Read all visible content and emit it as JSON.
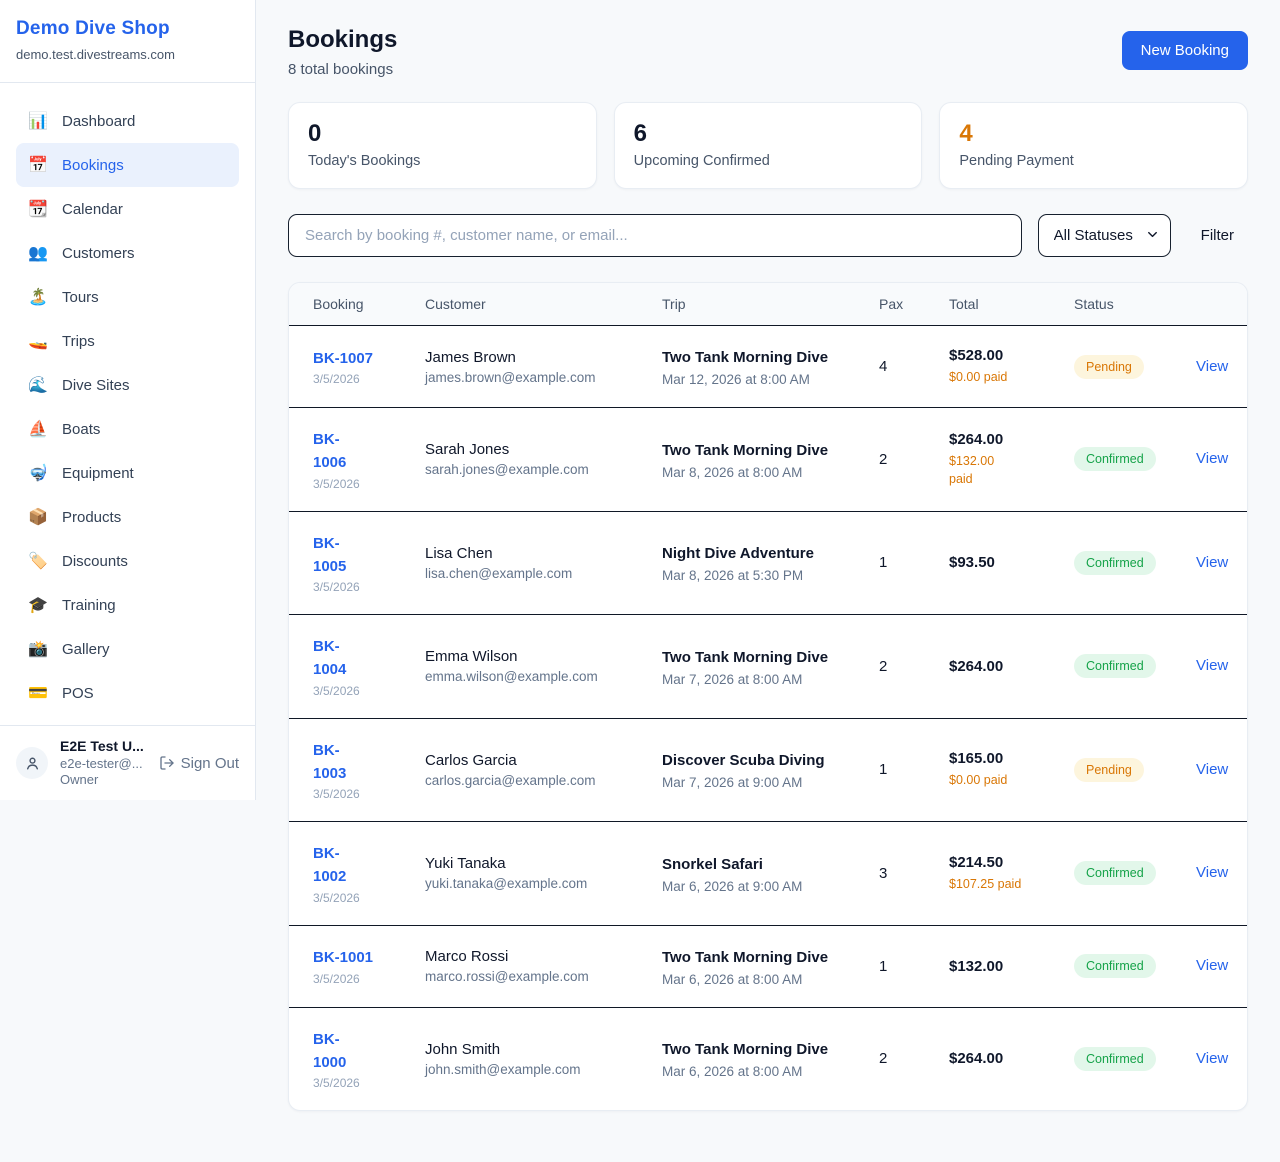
{
  "app": {
    "name": "Demo Dive Shop",
    "domain": "demo.test.divestreams.com"
  },
  "colors": {
    "accent_blue": "#2563eb",
    "pending_text": "#d97706",
    "pending_bg": "#fdf5dd",
    "confirmed_text": "#16a34a",
    "confirmed_bg": "#e2f7ea",
    "row_divider": "#101826"
  },
  "sidebar": {
    "items": [
      {
        "icon": "📊",
        "icon_name": "bar-chart-icon",
        "label": "Dashboard",
        "active": false
      },
      {
        "icon": "📅",
        "icon_name": "calendar-icon",
        "label": "Bookings",
        "active": true
      },
      {
        "icon": "📆",
        "icon_name": "tear-off-calendar-icon",
        "label": "Calendar",
        "active": false
      },
      {
        "icon": "👥",
        "icon_name": "people-icon",
        "label": "Customers",
        "active": false
      },
      {
        "icon": "🏝️",
        "icon_name": "island-icon",
        "label": "Tours",
        "active": false
      },
      {
        "icon": "🚤",
        "icon_name": "speedboat-icon",
        "label": "Trips",
        "active": false
      },
      {
        "icon": "🌊",
        "icon_name": "wave-icon",
        "label": "Dive Sites",
        "active": false
      },
      {
        "icon": "⛵",
        "icon_name": "sailboat-icon",
        "label": "Boats",
        "active": false
      },
      {
        "icon": "🤿",
        "icon_name": "diving-mask-icon",
        "label": "Equipment",
        "active": false
      },
      {
        "icon": "📦",
        "icon_name": "package-icon",
        "label": "Products",
        "active": false
      },
      {
        "icon": "🏷️",
        "icon_name": "tag-icon",
        "label": "Discounts",
        "active": false
      },
      {
        "icon": "🎓",
        "icon_name": "graduation-cap-icon",
        "label": "Training",
        "active": false
      },
      {
        "icon": "📸",
        "icon_name": "camera-icon",
        "label": "Gallery",
        "active": false
      },
      {
        "icon": "💳",
        "icon_name": "credit-card-icon",
        "label": "POS",
        "active": false
      }
    ],
    "user": {
      "name": "E2E Test U...",
      "email": "e2e-tester@...",
      "role": "Owner",
      "sign_out_label": "Sign Out"
    }
  },
  "header": {
    "title": "Bookings",
    "subtitle": "8 total bookings",
    "new_booking_label": "New Booking"
  },
  "stats": [
    {
      "value": "0",
      "label": "Today's Bookings",
      "value_color": "#0f172a"
    },
    {
      "value": "6",
      "label": "Upcoming Confirmed",
      "value_color": "#0f172a"
    },
    {
      "value": "4",
      "label": "Pending Payment",
      "value_color": "#d97706"
    }
  ],
  "filters": {
    "search_placeholder": "Search by booking #, customer name, or email...",
    "status_selected": "All Statuses",
    "filter_label": "Filter"
  },
  "table": {
    "columns": [
      "Booking",
      "Customer",
      "Trip",
      "Pax",
      "Total",
      "Status"
    ],
    "view_label": "View",
    "rows": [
      {
        "id": "BK-1007",
        "date": "3/5/2026",
        "customer": "James Brown",
        "email": "james.brown@example.com",
        "trip": "Two Tank Morning Dive",
        "trip_datetime": "Mar 12, 2026 at 8:00 AM",
        "pax": "4",
        "total": "$528.00",
        "paid": "$0.00 paid",
        "status": "Pending"
      },
      {
        "id": "BK-\n1006",
        "date": "3/5/2026",
        "customer": "Sarah Jones",
        "email": "sarah.jones@example.com",
        "trip": "Two Tank Morning Dive",
        "trip_datetime": "Mar 8, 2026 at 8:00 AM",
        "pax": "2",
        "total": "$264.00",
        "paid": "$132.00\npaid",
        "status": "Confirmed"
      },
      {
        "id": "BK-\n1005",
        "date": "3/5/2026",
        "customer": "Lisa Chen",
        "email": "lisa.chen@example.com",
        "trip": "Night Dive Adventure",
        "trip_datetime": "Mar 8, 2026 at 5:30 PM",
        "pax": "1",
        "total": "$93.50",
        "paid": "",
        "status": "Confirmed"
      },
      {
        "id": "BK-\n1004",
        "date": "3/5/2026",
        "customer": "Emma Wilson",
        "email": "emma.wilson@example.com",
        "trip": "Two Tank Morning Dive",
        "trip_datetime": "Mar 7, 2026 at 8:00 AM",
        "pax": "2",
        "total": "$264.00",
        "paid": "",
        "status": "Confirmed"
      },
      {
        "id": "BK-\n1003",
        "date": "3/5/2026",
        "customer": "Carlos Garcia",
        "email": "carlos.garcia@example.com",
        "trip": "Discover Scuba Diving",
        "trip_datetime": "Mar 7, 2026 at 9:00 AM",
        "pax": "1",
        "total": "$165.00",
        "paid": "$0.00 paid",
        "status": "Pending"
      },
      {
        "id": "BK-\n1002",
        "date": "3/5/2026",
        "customer": "Yuki Tanaka",
        "email": "yuki.tanaka@example.com",
        "trip": "Snorkel Safari",
        "trip_datetime": "Mar 6, 2026 at 9:00 AM",
        "pax": "3",
        "total": "$214.50",
        "paid": "$107.25 paid",
        "status": "Confirmed"
      },
      {
        "id": "BK-1001",
        "date": "3/5/2026",
        "customer": "Marco Rossi",
        "email": "marco.rossi@example.com",
        "trip": "Two Tank Morning Dive",
        "trip_datetime": "Mar 6, 2026 at 8:00 AM",
        "pax": "1",
        "total": "$132.00",
        "paid": "",
        "status": "Confirmed"
      },
      {
        "id": "BK-\n1000",
        "date": "3/5/2026",
        "customer": "John Smith",
        "email": "john.smith@example.com",
        "trip": "Two Tank Morning Dive",
        "trip_datetime": "Mar 6, 2026 at 8:00 AM",
        "pax": "2",
        "total": "$264.00",
        "paid": "",
        "status": "Confirmed"
      }
    ]
  }
}
